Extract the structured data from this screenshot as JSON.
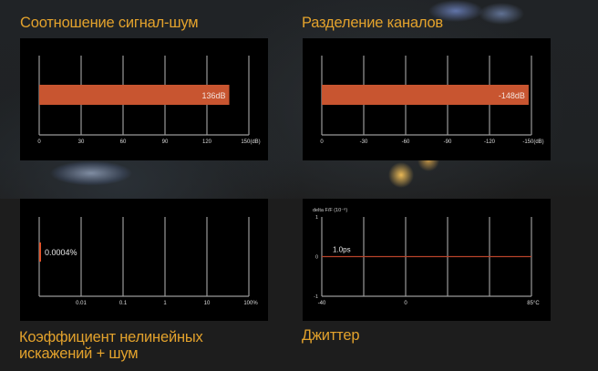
{
  "chart_data": [
    {
      "type": "bar",
      "title": "Соотношение сигнал-шум",
      "tick_labels": [
        "0",
        "30",
        "60",
        "90",
        "120",
        "150(dB)"
      ],
      "xlim": [
        0,
        150
      ],
      "value": 136,
      "data_label": "136dB",
      "grid": true,
      "bar_color": "#c85530"
    },
    {
      "type": "bar",
      "title": "Разделение каналов",
      "tick_labels": [
        "0",
        "-30",
        "-60",
        "-90",
        "-120",
        "-150(dB)"
      ],
      "xlim": [
        0,
        -150
      ],
      "value": -148,
      "data_label": "-148dB",
      "grid": true,
      "bar_color": "#c85530"
    },
    {
      "type": "bar",
      "title": "Коэффициент нелинейных искажений + шум",
      "title_lines": [
        "Коэффициент нелинейных",
        "искажений + шум"
      ],
      "scale": "log",
      "tick_labels": [
        "",
        "0.01",
        "0.1",
        "1",
        "10",
        "100%"
      ],
      "value": 0.0004,
      "data_label": "0.0004%",
      "grid": true,
      "bar_color": "#e0532a"
    },
    {
      "type": "line",
      "title": "Джиттер",
      "ylabel": "delta F/F (10⁻⁶)",
      "y_tick_labels": [
        "1",
        "0",
        "-1"
      ],
      "ylim": [
        -1,
        1
      ],
      "tick_labels": [
        "-40",
        "",
        "0",
        "",
        "",
        "85°C"
      ],
      "value": 0,
      "data_label": "1.0ps",
      "grid": true,
      "line_color": "#b8432a"
    }
  ],
  "colors": {
    "title": "#e3a22c",
    "panel": "#000000",
    "grid": "#9a9a9a"
  }
}
